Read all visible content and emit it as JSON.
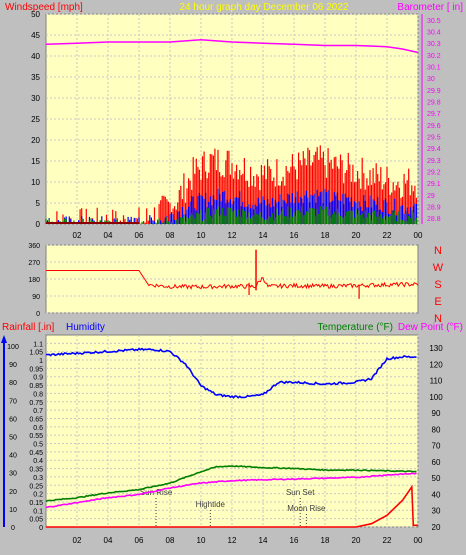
{
  "header": {
    "left_label": "Windspeed [mph]",
    "center_label": "24 hour graph day   December 06 2022",
    "right_label": "Barometer [ in]"
  },
  "lower_header": {
    "rainfall_label": "Rainfall [.in]",
    "humidity_label": "Humidity",
    "temperature_label": "Temperature (°F)",
    "dewpoint_label": "Dew Point (°F)"
  },
  "colors": {
    "background": "#bfbfbf",
    "plot_bg": "#ffffc0",
    "wind_max": "#ff0000",
    "wind_avg": "#0000ff",
    "wind_min": "#008000",
    "barometer": "#ff00ff",
    "direction": "#ff0000",
    "humidity": "#0000ff",
    "temperature": "#008000",
    "dewpoint": "#ff00ff",
    "rainfall": "#ff0000"
  },
  "x_ticks": [
    "02",
    "04",
    "06",
    "08",
    "10",
    "12",
    "14",
    "16",
    "18",
    "20",
    "22",
    "00"
  ],
  "events": [
    {
      "label": "Sun Rise",
      "hour": 7.1
    },
    {
      "label": "Hightide",
      "hour": 10.6
    },
    {
      "label": "Sun Set",
      "hour": 16.4
    },
    {
      "label": "Moon Rise",
      "hour": 16.8
    }
  ],
  "chart_data": [
    {
      "type": "line",
      "name": "wind-barometer",
      "xlim": [
        0,
        24
      ],
      "y_left": {
        "ticks": [
          0,
          5,
          10,
          15,
          20,
          25,
          30,
          35,
          40,
          45,
          50
        ],
        "ylim": [
          0,
          50
        ]
      },
      "y_right": {
        "ticks": [
          "28.8",
          "28.9",
          "29",
          "29.1",
          "29.2",
          "29.3",
          "29.4",
          "29.5",
          "29.6",
          "29.7",
          "29.8",
          "29.9",
          "30",
          "30.1",
          "30.2",
          "30.3",
          "30.4",
          "30.5"
        ],
        "ylim": [
          28.75,
          30.55
        ]
      },
      "wind_max_envelope": [
        [
          0,
          0
        ],
        [
          5.8,
          0
        ],
        [
          6.5,
          1
        ],
        [
          7.5,
          3
        ],
        [
          8.5,
          6
        ],
        [
          9.5,
          12
        ],
        [
          10.5,
          15
        ],
        [
          11.5,
          15
        ],
        [
          12.5,
          14
        ],
        [
          13.5,
          12
        ],
        [
          14.5,
          12
        ],
        [
          15.5,
          13
        ],
        [
          16.5,
          14
        ],
        [
          17.5,
          15
        ],
        [
          18.5,
          14
        ],
        [
          19.5,
          13
        ],
        [
          20.5,
          12
        ],
        [
          21.5,
          11
        ],
        [
          22.5,
          10
        ],
        [
          23.5,
          10
        ],
        [
          24,
          10
        ]
      ],
      "wind_avg_envelope": [
        [
          0,
          0
        ],
        [
          6.5,
          0
        ],
        [
          7.5,
          1
        ],
        [
          8.5,
          3
        ],
        [
          9.5,
          5
        ],
        [
          10.5,
          6
        ],
        [
          11.5,
          7
        ],
        [
          12.5,
          6
        ],
        [
          13.5,
          5
        ],
        [
          14.5,
          5
        ],
        [
          15.5,
          6
        ],
        [
          16.5,
          7
        ],
        [
          17.5,
          7
        ],
        [
          18.5,
          6
        ],
        [
          19.5,
          6
        ],
        [
          20.5,
          5
        ],
        [
          21.5,
          5
        ],
        [
          22.5,
          4
        ],
        [
          23.5,
          4
        ],
        [
          24,
          4
        ]
      ],
      "wind_min_envelope": [
        [
          0,
          0
        ],
        [
          7,
          0
        ],
        [
          8,
          0.5
        ],
        [
          9,
          1
        ],
        [
          10,
          2
        ],
        [
          11,
          3
        ],
        [
          12,
          3
        ],
        [
          13,
          2.5
        ],
        [
          14,
          2
        ],
        [
          15,
          2.5
        ],
        [
          16,
          3
        ],
        [
          17,
          3
        ],
        [
          18,
          3
        ],
        [
          19,
          2.5
        ],
        [
          20,
          2.5
        ],
        [
          21,
          2
        ],
        [
          22,
          2
        ],
        [
          23,
          2
        ],
        [
          24,
          2
        ]
      ],
      "barometer": [
        [
          0,
          30.29
        ],
        [
          2,
          30.3
        ],
        [
          4,
          30.31
        ],
        [
          6,
          30.31
        ],
        [
          8,
          30.31
        ],
        [
          10,
          30.33
        ],
        [
          12,
          30.31
        ],
        [
          14,
          30.3
        ],
        [
          16,
          30.29
        ],
        [
          18,
          30.28
        ],
        [
          20,
          30.28
        ],
        [
          22,
          30.27
        ],
        [
          23,
          30.25
        ],
        [
          24,
          30.22
        ]
      ]
    },
    {
      "type": "line",
      "name": "wind-direction",
      "xlim": [
        0,
        24
      ],
      "y_left": {
        "ticks": [
          0,
          90,
          180,
          270,
          360
        ],
        "ylim": [
          0,
          360
        ]
      },
      "compass_labels": [
        "N",
        "W",
        "S",
        "E",
        "N"
      ],
      "direction": [
        [
          0,
          225
        ],
        [
          6,
          225
        ],
        [
          6.6,
          150
        ],
        [
          8,
          140
        ],
        [
          10,
          138
        ],
        [
          12,
          142
        ],
        [
          13.5,
          140
        ],
        [
          14,
          190
        ],
        [
          14.3,
          140
        ],
        [
          16,
          145
        ],
        [
          18,
          142
        ],
        [
          20,
          145
        ],
        [
          22,
          150
        ],
        [
          24,
          152
        ]
      ]
    },
    {
      "type": "line",
      "name": "humidity-temperature-rain",
      "xlim": [
        0,
        24
      ],
      "y_left": {
        "ticks": [
          "0",
          "0.05",
          "0.1",
          "0.15",
          "0.2",
          "0.25",
          "0.3",
          "0.35",
          "0.4",
          "0.45",
          "0.5",
          "0.55",
          "0.6",
          "0.65",
          "0.7",
          "0.75",
          "0.8",
          "0.85",
          "0.9",
          "0.95",
          "1",
          "1.05",
          "1.1"
        ],
        "ylim": [
          0,
          1.15
        ]
      },
      "humidity_axis": {
        "ticks": [
          0,
          10,
          20,
          30,
          40,
          50,
          60,
          70,
          80,
          90,
          100
        ],
        "ylim": [
          0,
          100
        ]
      },
      "y_right": {
        "ticks": [
          20,
          30,
          40,
          50,
          60,
          70,
          80,
          90,
          100,
          110,
          120,
          130
        ],
        "ylim": [
          20,
          138
        ]
      },
      "humidity": [
        [
          0,
          95
        ],
        [
          2,
          96
        ],
        [
          4,
          97
        ],
        [
          6,
          98
        ],
        [
          7,
          98
        ],
        [
          8,
          97
        ],
        [
          9,
          90
        ],
        [
          10,
          78
        ],
        [
          11,
          73
        ],
        [
          12,
          72
        ],
        [
          13,
          72
        ],
        [
          14,
          73
        ],
        [
          15,
          80
        ],
        [
          16,
          80
        ],
        [
          18,
          79
        ],
        [
          20,
          80
        ],
        [
          21,
          82
        ],
        [
          22,
          93
        ],
        [
          23,
          94
        ],
        [
          24,
          94
        ]
      ],
      "temperature": [
        [
          0,
          36
        ],
        [
          2,
          38
        ],
        [
          4,
          41
        ],
        [
          6,
          43
        ],
        [
          8,
          47
        ],
        [
          10,
          54
        ],
        [
          11,
          57
        ],
        [
          12,
          57.5
        ],
        [
          13,
          57
        ],
        [
          14,
          56.5
        ],
        [
          16,
          56
        ],
        [
          18,
          55
        ],
        [
          20,
          55
        ],
        [
          22,
          54.5
        ],
        [
          24,
          54
        ]
      ],
      "dewpoint": [
        [
          0,
          32
        ],
        [
          2,
          35
        ],
        [
          4,
          38
        ],
        [
          6,
          40
        ],
        [
          8,
          44
        ],
        [
          10,
          47
        ],
        [
          12,
          48.5
        ],
        [
          14,
          49
        ],
        [
          16,
          49.5
        ],
        [
          18,
          50
        ],
        [
          20,
          50.5
        ],
        [
          22,
          52
        ],
        [
          24,
          53
        ]
      ],
      "rainfall": [
        [
          0,
          0
        ],
        [
          20,
          0
        ],
        [
          21,
          0.02
        ],
        [
          22,
          0.07
        ],
        [
          23,
          0.16
        ],
        [
          23.6,
          0.24
        ],
        [
          23.7,
          0.01
        ],
        [
          24,
          0.01
        ]
      ]
    }
  ]
}
